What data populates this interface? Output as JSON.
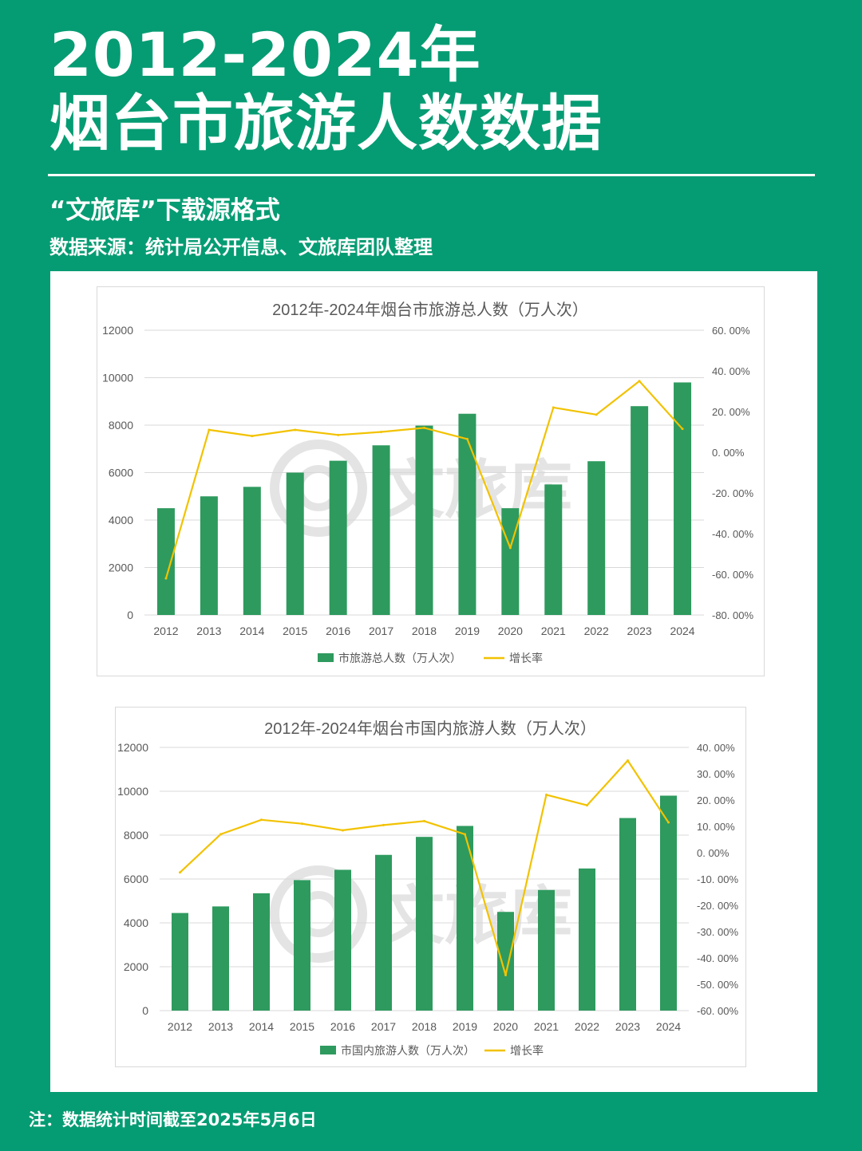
{
  "header": {
    "title_line1": "2012-2024年",
    "title_line2": "烟台市旅游人数数据",
    "subtitle": "“文旅库”下载源格式",
    "source": "数据来源：统计局公开信息、文旅库团队整理"
  },
  "footer": {
    "note": "注：数据统计时间截至2025年5月6日"
  },
  "watermark": {
    "text": "文旅库",
    "icon": "wenlvku-logo-icon"
  },
  "colors": {
    "background": "#069c73",
    "bar": "#2e9a5e",
    "line": "#f2c200",
    "grid": "#d9d9d9",
    "axis_text": "#595959"
  },
  "chart_data": [
    {
      "type": "bar",
      "title": "2012年-2024年烟台市旅游总人数（万人次）",
      "categories": [
        "2012",
        "2013",
        "2014",
        "2015",
        "2016",
        "2017",
        "2018",
        "2019",
        "2020",
        "2021",
        "2022",
        "2023",
        "2024"
      ],
      "series": [
        {
          "name": "市旅游总人数（万人次）",
          "type": "bar",
          "axis": "left",
          "values": [
            4500,
            5000,
            5400,
            6000,
            6500,
            7150,
            7980,
            8480,
            4500,
            5500,
            6480,
            8800,
            9800
          ]
        },
        {
          "name": "增长率",
          "type": "line",
          "axis": "right",
          "values": [
            -62,
            11,
            8,
            11,
            8.5,
            10,
            12,
            6.5,
            -47,
            22,
            18.5,
            35,
            11.5
          ]
        }
      ],
      "y_left": {
        "ylim": [
          0,
          12000
        ],
        "ticks": [
          "0",
          "2000",
          "4000",
          "6000",
          "8000",
          "10000",
          "12000"
        ]
      },
      "y_right": {
        "ylim": [
          -80,
          60
        ],
        "ticks": [
          "-80. 00%",
          "-60. 00%",
          "-40. 00%",
          "-20. 00%",
          "0. 00%",
          "20. 00%",
          "40. 00%",
          "60. 00%"
        ]
      },
      "grid": true,
      "legend": "bottom"
    },
    {
      "type": "bar",
      "title": "2012年-2024年烟台市国内旅游人数（万人次）",
      "categories": [
        "2012",
        "2013",
        "2014",
        "2015",
        "2016",
        "2017",
        "2018",
        "2019",
        "2020",
        "2021",
        "2022",
        "2023",
        "2024"
      ],
      "series": [
        {
          "name": "市国内旅游人数（万人次）",
          "type": "bar",
          "axis": "left",
          "values": [
            4450,
            4750,
            5350,
            5950,
            6420,
            7100,
            7920,
            8420,
            4500,
            5500,
            6480,
            8780,
            9800
          ]
        },
        {
          "name": "增长率",
          "type": "line",
          "axis": "right",
          "values": [
            -7.5,
            7,
            12.5,
            11,
            8.5,
            10.5,
            12,
            7,
            -46.5,
            22,
            18,
            35,
            11.5
          ]
        }
      ],
      "y_left": {
        "ylim": [
          0,
          12000
        ],
        "ticks": [
          "0",
          "2000",
          "4000",
          "6000",
          "8000",
          "10000",
          "12000"
        ]
      },
      "y_right": {
        "ylim": [
          -60,
          40
        ],
        "ticks": [
          "-60. 00%",
          "-50. 00%",
          "-40. 00%",
          "-30. 00%",
          "-20. 00%",
          "-10. 00%",
          "0. 00%",
          "10. 00%",
          "20. 00%",
          "30. 00%",
          "40. 00%"
        ]
      },
      "grid": true,
      "legend": "bottom"
    }
  ]
}
